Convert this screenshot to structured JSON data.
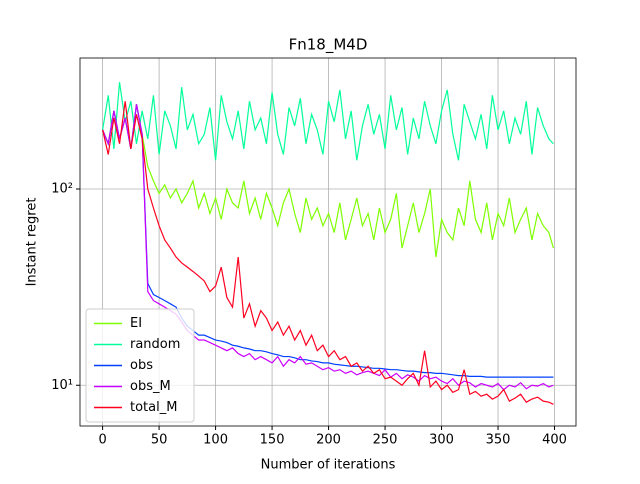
{
  "chart_data": {
    "type": "line",
    "title": "Fn18_M4D",
    "xlabel": "Number of iterations",
    "ylabel": "Instant regret",
    "x": [
      0,
      5,
      10,
      15,
      20,
      25,
      30,
      35,
      40,
      45,
      50,
      55,
      60,
      65,
      70,
      75,
      80,
      85,
      90,
      95,
      100,
      105,
      110,
      115,
      120,
      125,
      130,
      135,
      140,
      145,
      150,
      155,
      160,
      165,
      170,
      175,
      180,
      185,
      190,
      195,
      200,
      205,
      210,
      215,
      220,
      225,
      230,
      235,
      240,
      245,
      250,
      255,
      260,
      265,
      270,
      275,
      280,
      285,
      290,
      295,
      300,
      305,
      310,
      315,
      320,
      325,
      330,
      335,
      340,
      345,
      350,
      355,
      360,
      365,
      370,
      375,
      380,
      385,
      390,
      395,
      399
    ],
    "series": [
      {
        "name": "EI",
        "color": "#7fff00",
        "values": [
          200,
          170,
          250,
          180,
          230,
          160,
          270,
          190,
          130,
          110,
          95,
          105,
          90,
          100,
          85,
          95,
          110,
          80,
          95,
          75,
          90,
          70,
          100,
          85,
          80,
          110,
          75,
          90,
          70,
          95,
          80,
          65,
          85,
          100,
          75,
          60,
          90,
          70,
          80,
          65,
          75,
          60,
          85,
          55,
          70,
          90,
          65,
          75,
          55,
          80,
          60,
          70,
          95,
          50,
          65,
          85,
          60,
          75,
          100,
          45,
          70,
          60,
          55,
          80,
          65,
          110,
          70,
          60,
          85,
          55,
          75,
          65,
          90,
          60,
          70,
          80,
          55,
          75,
          65,
          60,
          50
        ]
      },
      {
        "name": "random",
        "color": "#00ff99",
        "values": [
          200,
          300,
          160,
          350,
          220,
          280,
          170,
          250,
          180,
          300,
          150,
          250,
          210,
          160,
          330,
          200,
          240,
          170,
          190,
          260,
          140,
          300,
          220,
          180,
          250,
          160,
          280,
          200,
          230,
          170,
          310,
          190,
          150,
          260,
          210,
          290,
          170,
          240,
          200,
          150,
          280,
          220,
          320,
          180,
          250,
          140,
          210,
          270,
          190,
          240,
          160,
          300,
          200,
          260,
          150,
          230,
          180,
          280,
          210,
          170,
          250,
          320,
          190,
          140,
          270,
          220,
          180,
          240,
          160,
          300,
          200,
          250,
          170,
          230,
          190,
          280,
          150,
          260,
          210,
          180,
          170
        ]
      },
      {
        "name": "obs",
        "color": "#0040ff",
        "values": [
          200,
          170,
          250,
          180,
          230,
          160,
          270,
          190,
          33,
          29,
          28,
          27,
          26,
          25,
          22,
          20,
          19,
          18,
          18,
          17.5,
          17,
          16.8,
          16.5,
          16,
          15.8,
          15.5,
          15.3,
          15,
          15,
          14.8,
          14.5,
          14.3,
          14,
          14,
          13.8,
          13.5,
          13.5,
          13.3,
          13.2,
          13,
          13,
          12.8,
          12.7,
          12.6,
          12.5,
          12.5,
          12.4,
          12.3,
          12.2,
          12.2,
          12.1,
          12,
          12,
          11.9,
          11.8,
          11.8,
          11.7,
          11.6,
          11.6,
          11.5,
          11.5,
          11.4,
          11.3,
          11.2,
          11.2,
          11.1,
          11.1,
          11.1,
          11,
          11,
          11,
          11,
          11,
          11,
          11,
          11,
          11,
          11,
          11,
          11,
          11
        ]
      },
      {
        "name": "obs_M",
        "color": "#cc00ff",
        "values": [
          200,
          170,
          250,
          180,
          230,
          160,
          270,
          190,
          30,
          27,
          26,
          25,
          24,
          23,
          21,
          19,
          18,
          17,
          17,
          16.5,
          16,
          15.5,
          15,
          15.5,
          14.5,
          14,
          14.5,
          13.5,
          14,
          13.5,
          13,
          14,
          12.5,
          13.5,
          13,
          14,
          12.8,
          13,
          12.5,
          12,
          12.3,
          11.8,
          12,
          11.5,
          11.8,
          11.3,
          11.6,
          11.8,
          11.5,
          11.2,
          12,
          11,
          11.5,
          10.8,
          11.3,
          11,
          10.5,
          11.2,
          10.8,
          11,
          10.5,
          10.2,
          10.8,
          10,
          10.5,
          10.3,
          9.8,
          10.2,
          10,
          9.8,
          10.2,
          9.5,
          10,
          9.8,
          10.3,
          9.6,
          10,
          9.9,
          10.2,
          9.8,
          10
        ]
      },
      {
        "name": "total_M",
        "color": "#ff0020",
        "values": [
          200,
          150,
          230,
          170,
          280,
          160,
          240,
          180,
          100,
          80,
          65,
          55,
          50,
          45,
          42,
          40,
          38,
          36,
          34,
          30,
          32,
          40,
          28,
          25,
          45,
          22,
          26,
          20,
          24,
          22,
          19,
          21,
          18,
          20,
          17,
          19,
          16,
          18,
          15,
          16,
          14,
          15,
          13.5,
          14,
          12.5,
          13,
          11.8,
          12.5,
          11.5,
          12,
          10.8,
          11,
          10.5,
          10,
          10.8,
          11.5,
          10,
          15,
          9.8,
          10.5,
          9.5,
          10,
          9.2,
          9.5,
          12,
          9,
          9.3,
          8.8,
          9,
          8.5,
          8.8,
          9.5,
          8.3,
          8.6,
          9,
          8.2,
          8.5,
          8.7,
          8.3,
          8.2,
          8
        ]
      }
    ],
    "xlim": [
      -20,
      419
    ],
    "xticks": [
      0,
      50,
      100,
      150,
      200,
      250,
      300,
      350,
      400
    ],
    "ylim": [
      6.2,
      465
    ],
    "yticks": [
      {
        "value": 10,
        "label": "10¹"
      },
      {
        "value": 100,
        "label": "10²"
      }
    ],
    "log_y": true,
    "grid": true,
    "legend": "lower left"
  }
}
